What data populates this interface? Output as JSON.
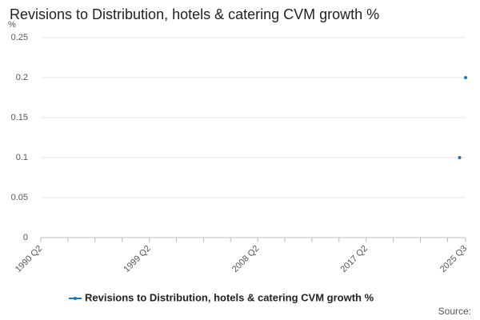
{
  "chart_data": {
    "type": "line",
    "title": "Revisions to Distribution, hotels & catering CVM growth %",
    "ylabel": "%",
    "source": "Source:",
    "categories": [
      "1990 Q2",
      null,
      null,
      null,
      null,
      null,
      null,
      null,
      null,
      null,
      null,
      null,
      null,
      null,
      null,
      null,
      null,
      null,
      null,
      null,
      null,
      null,
      null,
      null,
      null,
      null,
      null,
      null,
      null,
      null,
      null,
      null,
      null,
      null,
      null,
      null,
      "1999 Q2",
      null,
      null,
      null,
      null,
      null,
      null,
      null,
      null,
      null,
      null,
      null,
      null,
      null,
      null,
      null,
      null,
      null,
      null,
      null,
      null,
      null,
      null,
      null,
      null,
      null,
      null,
      null,
      null,
      null,
      null,
      null,
      null,
      null,
      null,
      null,
      "2008 Q2",
      null,
      null,
      null,
      null,
      null,
      null,
      null,
      null,
      null,
      null,
      null,
      null,
      null,
      null,
      null,
      null,
      null,
      null,
      null,
      null,
      null,
      null,
      null,
      null,
      null,
      null,
      null,
      null,
      null,
      null,
      null,
      null,
      null,
      null,
      null,
      "2017 Q2",
      null,
      null,
      null,
      null,
      null,
      null,
      null,
      null,
      null,
      null,
      null,
      null,
      null,
      null,
      null,
      null,
      null,
      null,
      null,
      null,
      null,
      null,
      null,
      null,
      null,
      null,
      null,
      null,
      null,
      null,
      null,
      null,
      "2025 Q3"
    ],
    "series": [
      {
        "name": "Revisions to Distribution, hotels & catering CVM growth %",
        "color": "#1b75bb",
        "values": [
          null,
          null,
          null,
          null,
          null,
          null,
          null,
          null,
          null,
          null,
          null,
          null,
          null,
          null,
          null,
          null,
          null,
          null,
          null,
          null,
          null,
          null,
          null,
          null,
          null,
          null,
          null,
          null,
          null,
          null,
          null,
          null,
          null,
          null,
          null,
          null,
          null,
          null,
          null,
          null,
          null,
          null,
          null,
          null,
          null,
          null,
          null,
          null,
          null,
          null,
          null,
          null,
          null,
          null,
          null,
          null,
          null,
          null,
          null,
          null,
          null,
          null,
          null,
          null,
          null,
          null,
          null,
          null,
          null,
          null,
          null,
          null,
          null,
          null,
          null,
          null,
          null,
          null,
          null,
          null,
          null,
          null,
          null,
          null,
          null,
          null,
          null,
          null,
          null,
          null,
          null,
          null,
          null,
          null,
          null,
          null,
          null,
          null,
          null,
          null,
          null,
          null,
          null,
          null,
          null,
          null,
          null,
          null,
          null,
          null,
          null,
          null,
          null,
          null,
          null,
          null,
          null,
          null,
          null,
          null,
          null,
          null,
          null,
          null,
          null,
          null,
          null,
          null,
          null,
          null,
          null,
          null,
          null,
          null,
          null,
          null,
          null,
          null,
          null,
          0.1,
          null,
          0.2
        ]
      }
    ],
    "ylim": [
      0,
      0.25
    ],
    "yticks": [
      0,
      0.05,
      0.1,
      0.15,
      0.2,
      0.25
    ],
    "grid": true
  }
}
